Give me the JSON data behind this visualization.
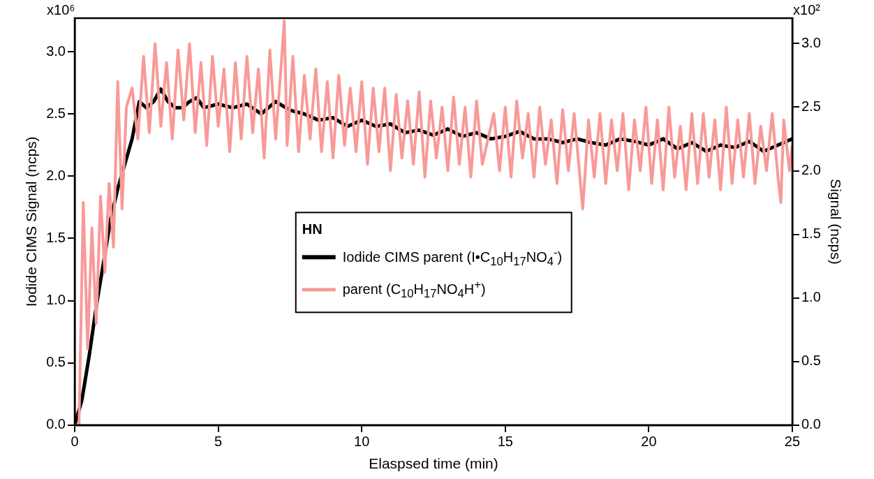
{
  "chart_data": {
    "type": "line",
    "xlabel": "Elaspsed time (min)",
    "ylabel": "Iodide CIMS Signal (ncps)",
    "y2label": "Signal (ncps)",
    "legend_title": "HN",
    "legend": "center",
    "grid": false,
    "marker": "none",
    "line_style": "solid",
    "xlim": [
      0,
      25
    ],
    "xticks": [
      0,
      5,
      10,
      15,
      20,
      25
    ],
    "ylim": [
      0,
      3.27
    ],
    "yticks": [
      {
        "value": 0,
        "label": "0.0"
      },
      {
        "value": 0.5,
        "label": "0.5"
      },
      {
        "value": 1,
        "label": "1.0"
      },
      {
        "value": 1.5,
        "label": "1.5"
      },
      {
        "value": 2,
        "label": "2.0"
      },
      {
        "value": 2.5,
        "label": "2.5"
      },
      {
        "value": 3,
        "label": "3.0"
      }
    ],
    "annotations": [
      "x10⁶",
      "x10²"
    ],
    "y2lim": [
      0,
      3.2
    ],
    "y2ticks": [
      {
        "value": 0,
        "label": "0.0"
      },
      {
        "value": 0.5,
        "label": "0.5"
      },
      {
        "value": 1,
        "label": "1.0"
      },
      {
        "value": 1.5,
        "label": "1.5"
      },
      {
        "value": 2,
        "label": "2.0"
      },
      {
        "value": 2.5,
        "label": "2.5"
      },
      {
        "value": 3,
        "label": "3.0"
      }
    ],
    "series": [
      {
        "name": "parent (C$_{10}$H$_{17}$NO$_{4}$H$^{+}$)",
        "color": "#f89a98",
        "axis": "y2",
        "x": [
          0,
          0.15,
          0.3,
          0.45,
          0.6,
          0.75,
          0.9,
          1.05,
          1.2,
          1.35,
          1.5,
          1.65,
          1.8,
          2.0,
          2.2,
          2.4,
          2.6,
          2.8,
          3.0,
          3.2,
          3.4,
          3.6,
          3.8,
          4.0,
          4.2,
          4.4,
          4.6,
          4.8,
          5.0,
          5.2,
          5.4,
          5.6,
          5.8,
          6.0,
          6.2,
          6.4,
          6.6,
          6.8,
          7.0,
          7.2,
          7.3,
          7.4,
          7.6,
          7.8,
          8.0,
          8.2,
          8.4,
          8.6,
          8.8,
          9.0,
          9.2,
          9.4,
          9.6,
          9.8,
          10.0,
          10.2,
          10.4,
          10.6,
          10.8,
          11.0,
          11.2,
          11.4,
          11.6,
          11.8,
          12.0,
          12.2,
          12.4,
          12.6,
          12.8,
          13.0,
          13.2,
          13.4,
          13.6,
          13.8,
          14.0,
          14.2,
          14.6,
          14.8,
          15.0,
          15.2,
          15.4,
          15.6,
          15.8,
          16.0,
          16.2,
          16.4,
          16.6,
          16.8,
          17.0,
          17.2,
          17.4,
          17.7,
          17.9,
          18.1,
          18.3,
          18.5,
          18.7,
          18.9,
          19.1,
          19.3,
          19.5,
          19.7,
          19.9,
          20.1,
          20.3,
          20.5,
          20.7,
          20.9,
          21.1,
          21.3,
          21.5,
          21.7,
          21.9,
          22.1,
          22.3,
          22.5,
          22.7,
          22.9,
          23.1,
          23.3,
          23.5,
          23.7,
          23.9,
          24.1,
          24.3,
          24.5,
          24.6,
          24.7,
          24.9,
          25.0
        ],
        "values": [
          0,
          0,
          1.75,
          0.6,
          1.55,
          0.8,
          1.8,
          1.2,
          1.9,
          1.4,
          2.7,
          1.7,
          2.5,
          2.65,
          2.25,
          2.9,
          2.3,
          3.0,
          2.35,
          2.85,
          2.25,
          2.95,
          2.4,
          3.0,
          2.3,
          2.85,
          2.2,
          2.9,
          2.35,
          2.8,
          2.15,
          2.85,
          2.25,
          2.9,
          2.3,
          2.8,
          2.1,
          2.95,
          2.25,
          2.85,
          3.18,
          2.2,
          2.9,
          2.15,
          2.75,
          2.25,
          2.8,
          2.15,
          2.7,
          2.1,
          2.75,
          2.2,
          2.65,
          2.15,
          2.7,
          2.05,
          2.65,
          2.15,
          2.65,
          2.0,
          2.6,
          2.1,
          2.55,
          2.05,
          2.62,
          1.95,
          2.55,
          2.1,
          2.5,
          2.0,
          2.58,
          2.05,
          2.5,
          1.95,
          2.55,
          2.05,
          2.45,
          2.0,
          2.5,
          1.95,
          2.55,
          2.1,
          2.45,
          1.95,
          2.5,
          2.05,
          2.4,
          1.9,
          2.48,
          2.0,
          2.45,
          1.7,
          2.4,
          1.95,
          2.45,
          1.9,
          2.4,
          2.0,
          2.45,
          1.85,
          2.4,
          2.0,
          2.5,
          1.9,
          2.4,
          1.85,
          2.5,
          1.95,
          2.35,
          1.85,
          2.45,
          1.9,
          2.45,
          1.95,
          2.4,
          1.85,
          2.5,
          1.9,
          2.4,
          1.95,
          2.45,
          1.9,
          2.35,
          2.0,
          2.45,
          1.95,
          1.75,
          2.4,
          2.0,
          2.2
        ]
      },
      {
        "name": "Iodide CIMS parent (I•C$_{10}$H$_{17}$NO$_{4}$$^{-}$)",
        "color": "#000000",
        "axis": "y",
        "x": [
          0,
          0.25,
          0.5,
          0.75,
          1.0,
          1.25,
          1.5,
          1.75,
          2.0,
          2.25,
          2.5,
          2.75,
          3.0,
          3.25,
          3.5,
          3.75,
          4.0,
          4.25,
          4.5,
          5,
          5.5,
          6,
          6.5,
          7,
          7.5,
          8,
          8.5,
          9,
          9.5,
          10,
          10.5,
          11,
          11.5,
          12,
          12.5,
          13,
          13.5,
          14,
          14.5,
          15,
          15.5,
          16,
          16.5,
          17,
          17.5,
          18,
          18.5,
          19,
          19.5,
          20,
          20.5,
          21,
          21.5,
          22,
          22.5,
          23,
          23.5,
          24,
          24.5,
          25
        ],
        "values": [
          0,
          0.2,
          0.55,
          0.95,
          1.3,
          1.65,
          1.9,
          2.1,
          2.3,
          2.6,
          2.55,
          2.6,
          2.7,
          2.6,
          2.55,
          2.55,
          2.6,
          2.63,
          2.55,
          2.58,
          2.55,
          2.58,
          2.5,
          2.6,
          2.53,
          2.5,
          2.45,
          2.47,
          2.4,
          2.45,
          2.4,
          2.42,
          2.35,
          2.37,
          2.33,
          2.38,
          2.32,
          2.35,
          2.3,
          2.32,
          2.36,
          2.3,
          2.3,
          2.27,
          2.3,
          2.27,
          2.25,
          2.3,
          2.28,
          2.25,
          2.3,
          2.22,
          2.27,
          2.2,
          2.25,
          2.23,
          2.28,
          2.2,
          2.25,
          2.3
        ]
      }
    ]
  }
}
